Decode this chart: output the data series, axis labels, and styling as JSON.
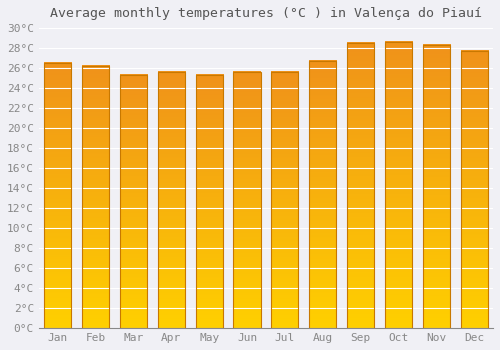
{
  "title": "Average monthly temperatures (°C ) in Valença do Piauí",
  "months": [
    "Jan",
    "Feb",
    "Mar",
    "Apr",
    "May",
    "Jun",
    "Jul",
    "Aug",
    "Sep",
    "Oct",
    "Nov",
    "Dec"
  ],
  "values": [
    26.5,
    26.2,
    25.3,
    25.6,
    25.3,
    25.6,
    25.6,
    26.7,
    28.5,
    28.6,
    28.3,
    27.7
  ],
  "bar_color_bottom": "#FFD000",
  "bar_color_top": "#F0921A",
  "bar_border_color": "#C87800",
  "ylim": [
    0,
    30
  ],
  "ytick_step": 2,
  "background_color": "#f0f0f5",
  "plot_bg_color": "#f0f0f5",
  "grid_color": "#ffffff",
  "title_fontsize": 9.5,
  "tick_fontsize": 8,
  "font_family": "monospace"
}
